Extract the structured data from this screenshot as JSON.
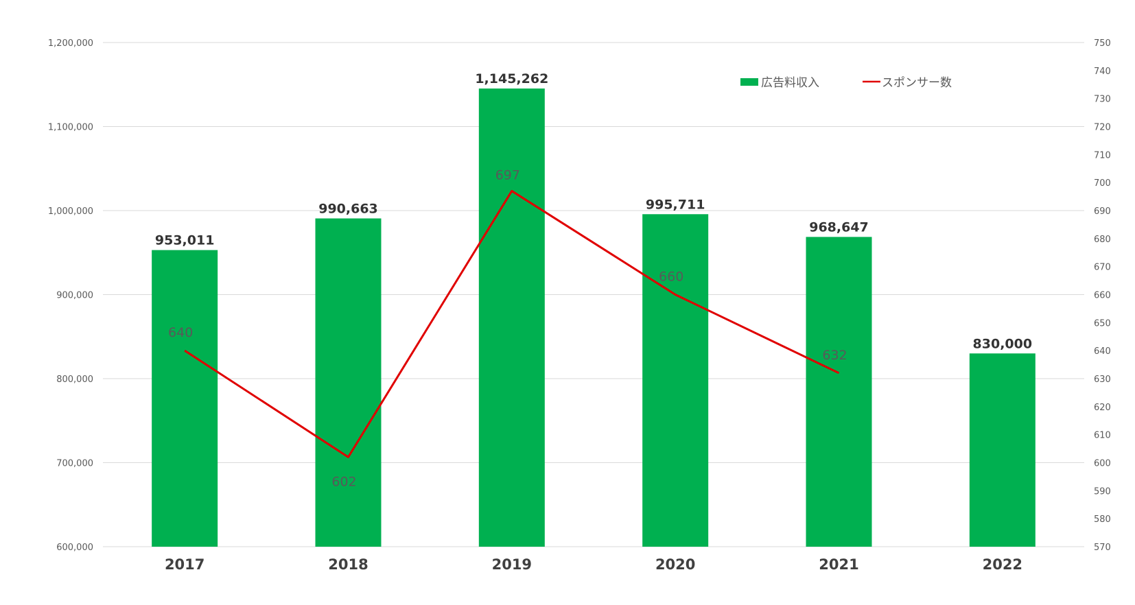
{
  "chart_data": {
    "type": "bar",
    "categories": [
      "2017",
      "2018",
      "2019",
      "2020",
      "2021",
      "2022"
    ],
    "series": [
      {
        "name": "広告料収入",
        "type": "bar",
        "axis": "left",
        "color": "#00b050",
        "values": [
          953011,
          990663,
          1145262,
          995711,
          968647,
          830000
        ],
        "labels": [
          "953,011",
          "990,663",
          "1,145,262",
          "995,711",
          "968,647",
          "830,000"
        ]
      },
      {
        "name": "スポンサー数",
        "type": "line",
        "axis": "right",
        "color": "#e00000",
        "values": [
          640,
          602,
          697,
          660,
          632,
          null
        ],
        "labels": [
          "640",
          "602",
          "697",
          "660",
          "632",
          ""
        ]
      }
    ],
    "y_left": {
      "min": 600000,
      "max": 1200000,
      "step": 100000,
      "ticks": [
        "600,000",
        "700,000",
        "800,000",
        "900,000",
        "1,000,000",
        "1,100,000",
        "1,200,000"
      ]
    },
    "y_right": {
      "min": 570,
      "max": 750,
      "step": 10,
      "ticks": [
        "570",
        "580",
        "590",
        "600",
        "610",
        "620",
        "630",
        "640",
        "650",
        "660",
        "670",
        "680",
        "690",
        "700",
        "710",
        "720",
        "730",
        "740",
        "750"
      ]
    },
    "grid": true,
    "legend_position": "top-right",
    "title": "",
    "xlabel": "",
    "ylabel": ""
  }
}
